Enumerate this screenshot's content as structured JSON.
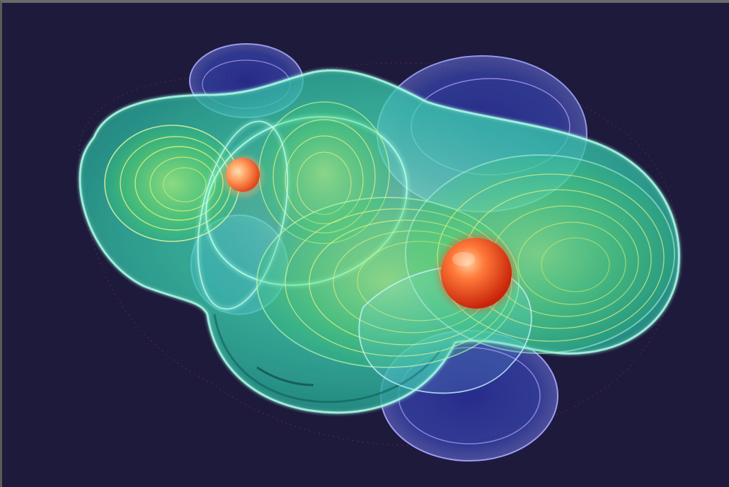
{
  "image": {
    "background_color": "#1d1a3c",
    "frame_color": "#6a6a6a",
    "palette": {
      "lobe_teal": "#3fd9b4",
      "lobe_teal_dark": "#1f8f86",
      "lobe_green": "#5fdc62",
      "lobe_blue": "#3d4fc8",
      "lobe_violet": "#6d5be6",
      "contour_yellow": "#e8f28a",
      "nucleus_red": "#ff4a1a",
      "nucleus_orange": "#ffb070"
    }
  }
}
